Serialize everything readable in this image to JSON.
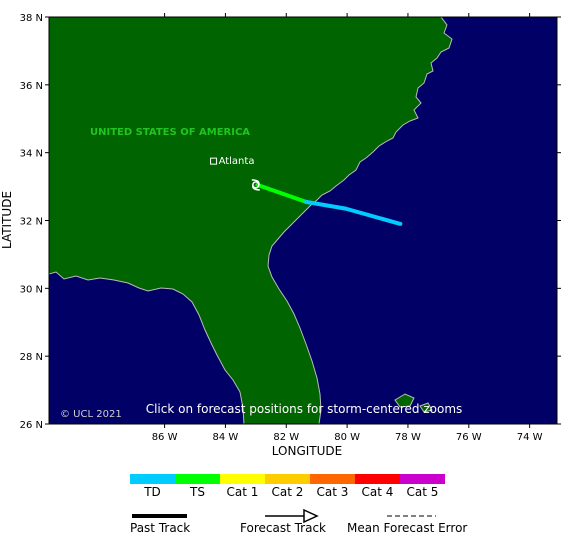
{
  "map": {
    "lat_range": [
      26,
      38
    ],
    "lon_range": [
      -89.8,
      -73.1
    ],
    "lat_ticks": [
      "38 N",
      "36 N",
      "34 N",
      "32 N",
      "30 N",
      "28 N",
      "26 N"
    ],
    "lon_ticks": [
      "86 W",
      "84 W",
      "82 W",
      "80 W",
      "78 W",
      "76 W",
      "74 W"
    ],
    "x_label": "LONGITUDE",
    "y_label": "LATITUDE",
    "country_label": "UNITED STATES OF AMERICA",
    "city": {
      "name": "Atlanta",
      "lat": 33.75,
      "lon": -84.39
    },
    "hint": "Click on forecast positions for storm-centered zooms",
    "copyright": "© UCL 2021",
    "colors": {
      "ocean": "#000066",
      "land": "#006400",
      "coast": "#bbbbbb",
      "country_label": "#22c422"
    }
  },
  "storm": {
    "track": [
      {
        "lat": 33.05,
        "lon": -82.95,
        "category": "TD"
      },
      {
        "lat": 32.55,
        "lon": -81.35,
        "category": "TS"
      },
      {
        "lat": 32.35,
        "lon": -80.05,
        "category": "TD"
      },
      {
        "lat": 31.9,
        "lon": -78.25,
        "category": "TD"
      }
    ],
    "current_position": {
      "lat": 33.05,
      "lon": -83.0,
      "icon": "tropical-depression-icon"
    }
  },
  "legend": {
    "categories": [
      {
        "label": "TD",
        "color": "#00ccff"
      },
      {
        "label": "TS",
        "color": "#00ff00"
      },
      {
        "label": "Cat 1",
        "color": "#ffff00"
      },
      {
        "label": "Cat 2",
        "color": "#ffcc00"
      },
      {
        "label": "Cat 3",
        "color": "#ff6600"
      },
      {
        "label": "Cat 4",
        "color": "#ff0000"
      },
      {
        "label": "Cat 5",
        "color": "#cc00cc"
      }
    ],
    "past_track": "Past Track",
    "forecast_track": "Forecast Track",
    "mean_error": "Mean Forecast Error"
  }
}
